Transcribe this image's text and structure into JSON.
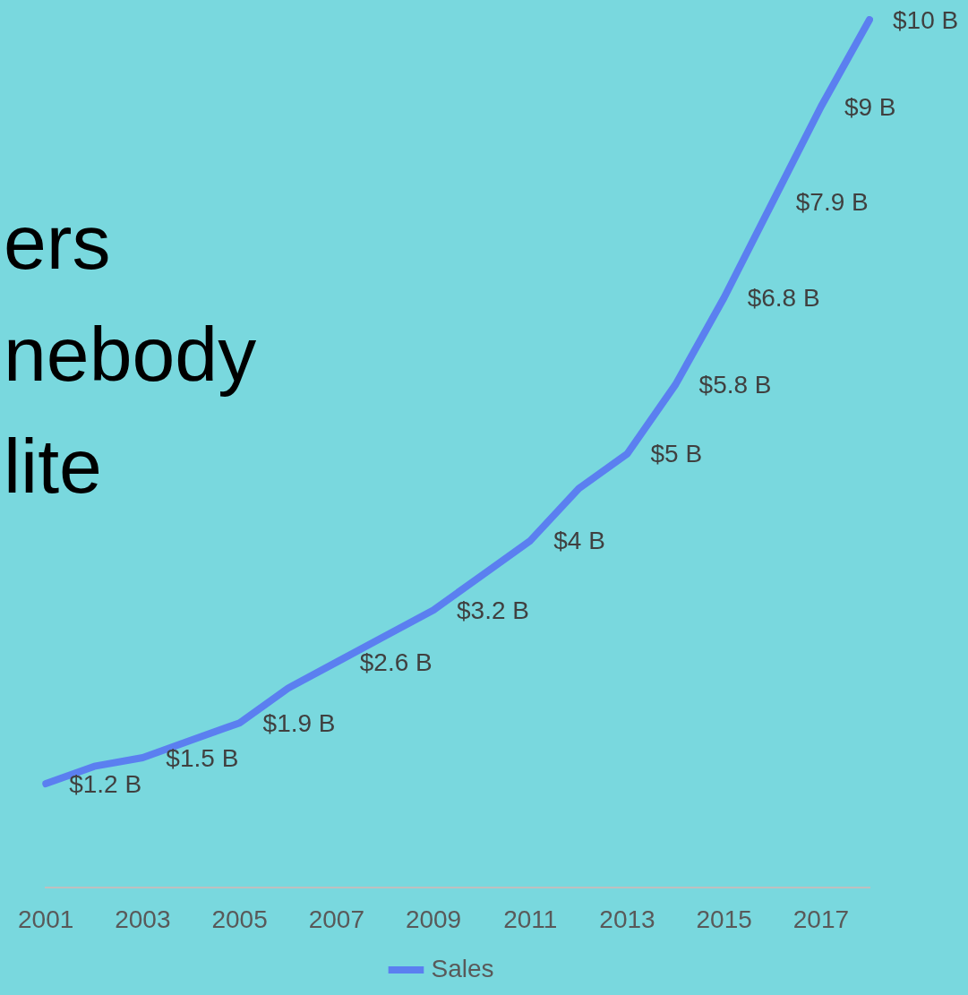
{
  "chart_data": {
    "type": "line",
    "categories": [
      "2001",
      null,
      "2003",
      null,
      "2005",
      null,
      "2007",
      null,
      "2009",
      null,
      "2011",
      null,
      "2013",
      null,
      "2015",
      null,
      "2017",
      null
    ],
    "series": [
      {
        "name": "Sales",
        "color": "#5b7ff0",
        "values": [
          1.2,
          1.4,
          1.5,
          1.7,
          1.9,
          2.3,
          2.6,
          2.9,
          3.2,
          3.6,
          4,
          4.6,
          5,
          5.8,
          6.8,
          7.9,
          9,
          10
        ],
        "value_labels": [
          "$1.2 B",
          null,
          "$1.5 B",
          null,
          "$1.9 B",
          null,
          "$2.6 B",
          null,
          "$3.2 B",
          null,
          "$4 B",
          null,
          "$5 B",
          "$5.8 B",
          "$6.8 B",
          "$7.9 B",
          "$9 B",
          "$10 B"
        ]
      }
    ],
    "tick_labels": "x",
    "grid": false,
    "legend": "bottom",
    "marker": "none",
    "line_style": "solid",
    "annotations": [
      "ers",
      "nebody",
      "lite"
    ]
  }
}
